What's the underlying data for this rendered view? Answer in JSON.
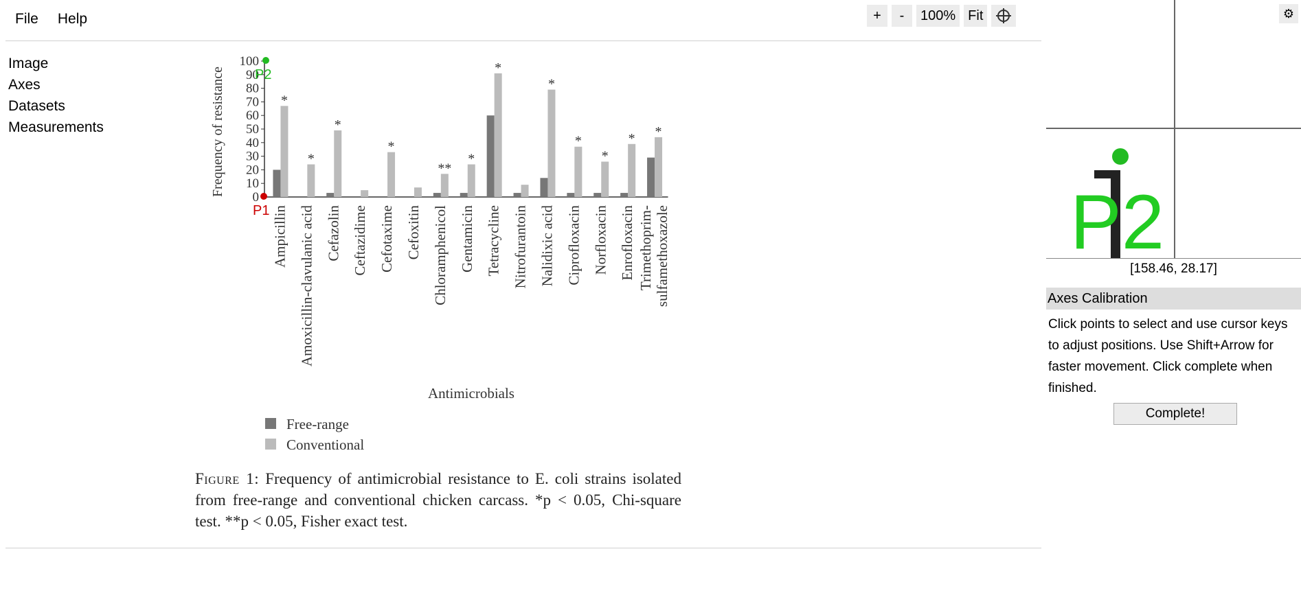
{
  "menu": {
    "file": "File",
    "help": "Help"
  },
  "toolbar": {
    "zoom_in": "+",
    "zoom_out": "-",
    "zoom_level": "100%",
    "fit": "Fit"
  },
  "nav": [
    "Image",
    "Axes",
    "Datasets",
    "Measurements"
  ],
  "magnifier": {
    "coords": "[158.46, 28.17]",
    "label": "P2"
  },
  "panel": {
    "title": "Axes Calibration",
    "instructions": "Click points to select and use cursor keys to adjust positions. Use Shift+Arrow for faster movement. Click complete when finished.",
    "complete": "Complete!"
  },
  "calibration_points": [
    {
      "label": "P1",
      "color": "#cc0000"
    },
    {
      "label": "P2",
      "color": "#22bb22"
    }
  ],
  "colors": {
    "free_range": "#777777",
    "conventional": "#bbbbbb"
  },
  "chart_data": {
    "type": "bar",
    "ylabel": "Frequency of resistance",
    "xlabel": "Antimicrobials",
    "ylim": [
      0,
      100
    ],
    "yticks": [
      0,
      10,
      20,
      30,
      40,
      50,
      60,
      70,
      80,
      90,
      100
    ],
    "categories": [
      "Ampicillin",
      "Amoxicillin-clavulanic acid",
      "Cefazolin",
      "Ceftazidime",
      "Cefotaxime",
      "Cefoxitin",
      "Chloramphenicol",
      "Gentamicin",
      "Tetracycline",
      "Nitrofurantoin",
      "Nalidixic acid",
      "Ciprofloxacin",
      "Norfloxacin",
      "Enrofloxacin",
      "Trimethoprim-\nsulfamethoxazole"
    ],
    "series": [
      {
        "name": "Free-range",
        "values": [
          20,
          0,
          3,
          0,
          0,
          0,
          3,
          3,
          60,
          3,
          14,
          3,
          3,
          3,
          29
        ]
      },
      {
        "name": "Conventional",
        "values": [
          67,
          24,
          49,
          5,
          33,
          7,
          17,
          24,
          91,
          9,
          79,
          37,
          26,
          39,
          44
        ]
      }
    ],
    "significance": [
      "*",
      "*",
      "*",
      "",
      "*",
      "",
      "**",
      "*",
      "*",
      "",
      "*",
      "*",
      "*",
      "*",
      "*"
    ],
    "legend": [
      "Free-range",
      "Conventional"
    ]
  },
  "caption": {
    "label": "Figure 1:",
    "text": " Frequency of antimicrobial resistance to E. coli strains isolated from free-range and conventional chicken carcass. *p < 0.05, Chi-square test. **p < 0.05, Fisher exact test."
  }
}
